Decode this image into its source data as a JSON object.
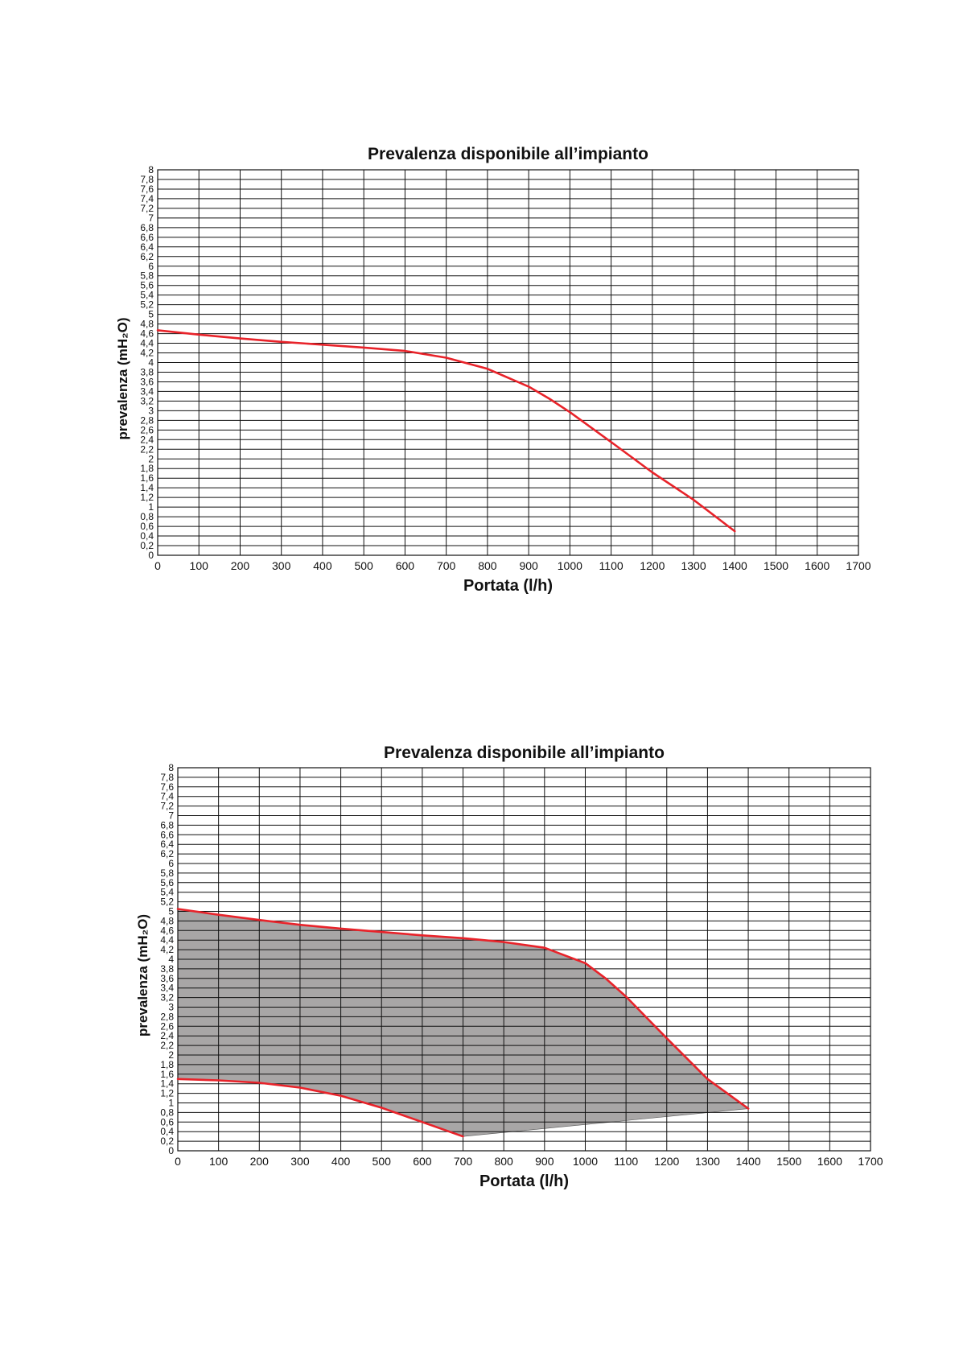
{
  "chart_data": [
    {
      "type": "line",
      "title": "Prevalenza disponibile all’impianto",
      "xlabel": "Portata (l/h)",
      "ylabel": "prevalenza (mH₂O)",
      "xlim": [
        0,
        1700
      ],
      "ylim": [
        0,
        8
      ],
      "grid": true,
      "x_ticks": [
        0,
        100,
        200,
        300,
        400,
        500,
        600,
        700,
        800,
        900,
        1000,
        1100,
        1200,
        1300,
        1400,
        1500,
        1600,
        1700
      ],
      "y_ticks": [
        "0",
        "0,2",
        "0,4",
        "0,6",
        "0,8",
        "1",
        "1,2",
        "1,4",
        "1,6",
        "1,8",
        "2",
        "2,2",
        "2,4",
        "2,6",
        "2,8",
        "3",
        "3,2",
        "3,4",
        "3,6",
        "3,8",
        "4",
        "4,2",
        "4,4",
        "4,6",
        "4,8",
        "5",
        "5,2",
        "5,4",
        "5,6",
        "5,8",
        "6",
        "6,2",
        "6,4",
        "6,6",
        "6,8",
        "7",
        "7,2",
        "7,4",
        "7,6",
        "7,8",
        "8"
      ],
      "series": [
        {
          "color": "#e8232a",
          "points": [
            [
              0,
              4.67
            ],
            [
              100,
              4.58
            ],
            [
              200,
              4.5
            ],
            [
              300,
              4.43
            ],
            [
              400,
              4.37
            ],
            [
              500,
              4.31
            ],
            [
              600,
              4.24
            ],
            [
              700,
              4.1
            ],
            [
              800,
              3.87
            ],
            [
              900,
              3.5
            ],
            [
              950,
              3.25
            ],
            [
              1000,
              2.97
            ],
            [
              1100,
              2.35
            ],
            [
              1200,
              1.72
            ],
            [
              1300,
              1.15
            ],
            [
              1400,
              0.5
            ]
          ]
        }
      ]
    },
    {
      "type": "area",
      "title": "Prevalenza disponibile all’impianto",
      "xlabel": "Portata (l/h)",
      "ylabel": "prevalenza (mH₂O)",
      "xlim": [
        0,
        1700
      ],
      "ylim": [
        0,
        8
      ],
      "grid": true,
      "fill_color": "#a8a6a6",
      "x_ticks": [
        0,
        100,
        200,
        300,
        400,
        500,
        600,
        700,
        800,
        900,
        1000,
        1100,
        1200,
        1300,
        1400,
        1500,
        1600,
        1700
      ],
      "y_ticks": [
        "0",
        "0,2",
        "0,4",
        "0,6",
        "0,8",
        "1",
        "1,2",
        "1,4",
        "1,6",
        "1,8",
        "2",
        "2,2",
        "2,4",
        "2,6",
        "2,8",
        "3",
        "3,2",
        "3,4",
        "3,6",
        "3,8",
        "4",
        "4,2",
        "4,4",
        "4,6",
        "4,8",
        "5",
        "5,2",
        "5,4",
        "5,6",
        "5,8",
        "6",
        "6,2",
        "6,4",
        "6,6",
        "6,8",
        "7",
        "7,2",
        "7,4",
        "7,6",
        "7,8",
        "8"
      ],
      "series": [
        {
          "color": "#e8232a",
          "points": [
            [
              0,
              5.05
            ],
            [
              100,
              4.93
            ],
            [
              200,
              4.82
            ],
            [
              300,
              4.72
            ],
            [
              400,
              4.64
            ],
            [
              500,
              4.57
            ],
            [
              600,
              4.5
            ],
            [
              700,
              4.44
            ],
            [
              800,
              4.36
            ],
            [
              900,
              4.24
            ],
            [
              1000,
              3.92
            ],
            [
              1050,
              3.6
            ],
            [
              1100,
              3.22
            ],
            [
              1200,
              2.35
            ],
            [
              1300,
              1.5
            ],
            [
              1400,
              0.88
            ]
          ]
        },
        {
          "color": "#e8232a",
          "points": [
            [
              0,
              1.5
            ],
            [
              100,
              1.47
            ],
            [
              200,
              1.42
            ],
            [
              300,
              1.32
            ],
            [
              400,
              1.15
            ],
            [
              500,
              0.9
            ],
            [
              600,
              0.6
            ],
            [
              700,
              0.3
            ]
          ]
        }
      ]
    }
  ]
}
